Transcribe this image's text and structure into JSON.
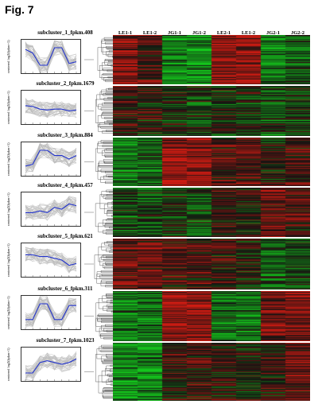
{
  "figure": {
    "title": "Fig. 7"
  },
  "columns": [
    "LE1-1",
    "LE1-2",
    "JG1-1",
    "JG1-2",
    "LE2-1",
    "LE1-2",
    "JG2-1",
    "JG2-2"
  ],
  "y_axis_label": "centered log2(fpkm+1)",
  "subclusters": [
    {
      "title": "subcluster_1_fpkm.408",
      "trend": [
        0.4,
        0.2,
        -0.5,
        -0.5,
        0.5,
        0.5,
        -0.4,
        -0.3
      ]
    },
    {
      "title": "subcluster_2_fpkm.1679",
      "trend": [
        0.1,
        0.05,
        -0.1,
        -0.15,
        -0.1,
        -0.1,
        -0.2,
        -0.15
      ]
    },
    {
      "title": "subcluster_3_fpkm.884",
      "trend": [
        -0.4,
        -0.3,
        0.5,
        0.5,
        0.2,
        0.2,
        0.0,
        0.2
      ]
    },
    {
      "title": "subcluster_4_fpkm.457",
      "trend": [
        -0.2,
        -0.2,
        -0.1,
        -0.2,
        0.1,
        0.0,
        0.3,
        0.2
      ]
    },
    {
      "title": "subcluster_5_fpkm.621",
      "trend": [
        0.3,
        0.3,
        0.2,
        0.2,
        0.1,
        0.0,
        -0.3,
        -0.2
      ]
    },
    {
      "title": "subcluster_6_fpkm.311",
      "trend": [
        -0.4,
        -0.4,
        0.5,
        0.5,
        -0.4,
        -0.4,
        0.4,
        0.4
      ]
    },
    {
      "title": "subcluster_7_fpkm.1023",
      "trend": [
        -0.5,
        -0.5,
        0.1,
        0.2,
        0.1,
        0.0,
        0.1,
        0.3
      ]
    }
  ],
  "colors": {
    "trend_line": "#2233cc",
    "gene_lines": "#bbbbbb",
    "high": "#d22020",
    "low": "#20c020",
    "mid": "#101010"
  }
}
